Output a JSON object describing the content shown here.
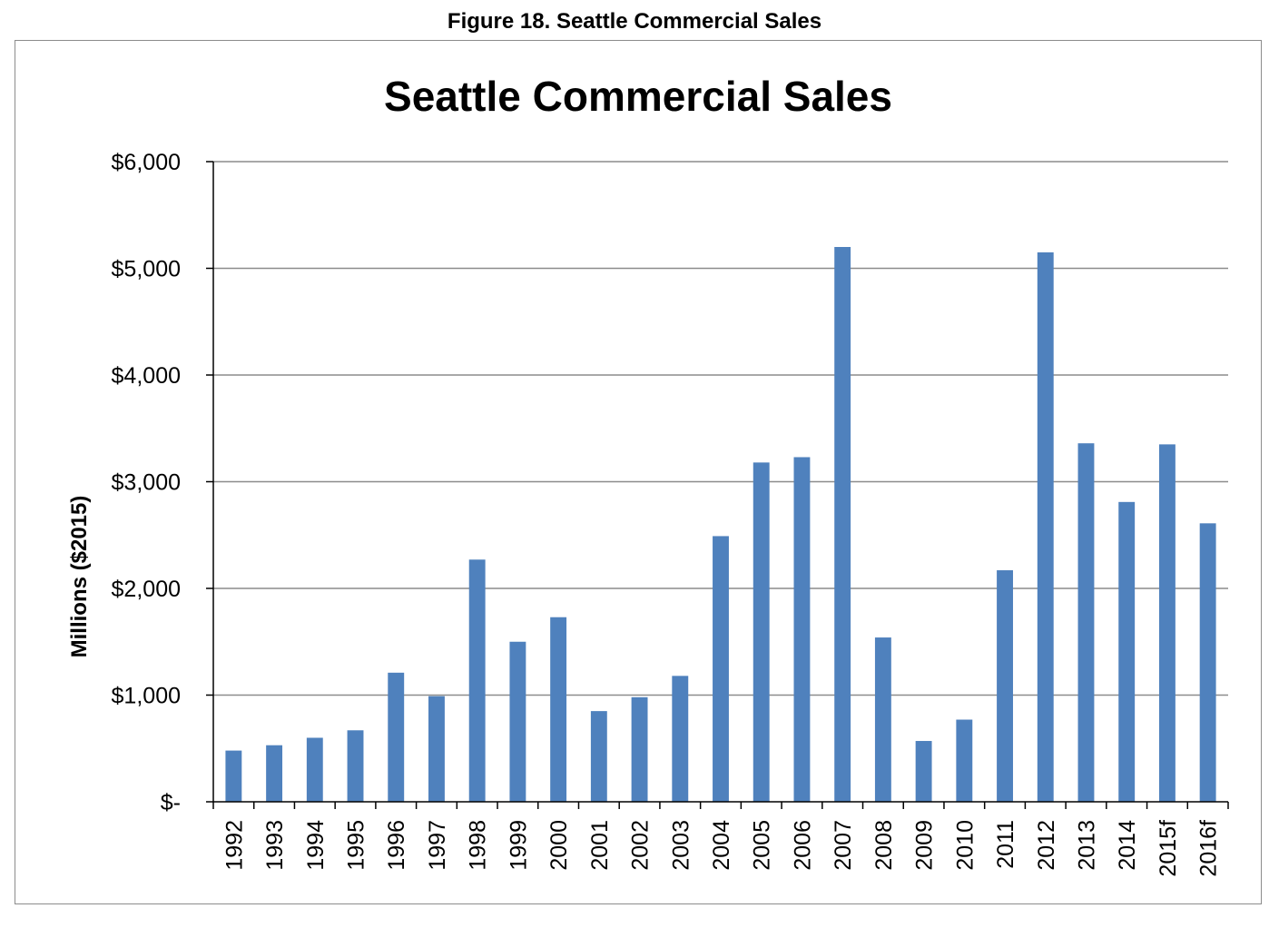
{
  "figure_caption": "Figure 18.  Seattle Commercial Sales",
  "colors": {
    "bar": "#4f81bd",
    "grid": "#8c8c8c",
    "axis": "#000000"
  },
  "chart_data": {
    "type": "bar",
    "title": "Seattle Commercial Sales",
    "xlabel": "",
    "ylabel": "Millions ($2015)",
    "ylim": [
      0,
      6000
    ],
    "y_ticks": [
      0,
      1000,
      2000,
      3000,
      4000,
      5000,
      6000
    ],
    "y_tick_labels": [
      "$-",
      "$1,000",
      "$2,000",
      "$3,000",
      "$4,000",
      "$5,000",
      "$6,000"
    ],
    "grid": true,
    "legend": "none",
    "categories": [
      "1992",
      "1993",
      "1994",
      "1995",
      "1996",
      "1997",
      "1998",
      "1999",
      "2000",
      "2001",
      "2002",
      "2003",
      "2004",
      "2005",
      "2006",
      "2007",
      "2008",
      "2009",
      "2010",
      "2011",
      "2012",
      "2013",
      "2014",
      "2015f",
      "2016f"
    ],
    "values": [
      480,
      530,
      600,
      670,
      1210,
      990,
      2270,
      1500,
      1730,
      850,
      980,
      1180,
      2490,
      3180,
      3230,
      5200,
      1540,
      570,
      770,
      2170,
      5150,
      3360,
      2810,
      3350,
      2610
    ]
  }
}
